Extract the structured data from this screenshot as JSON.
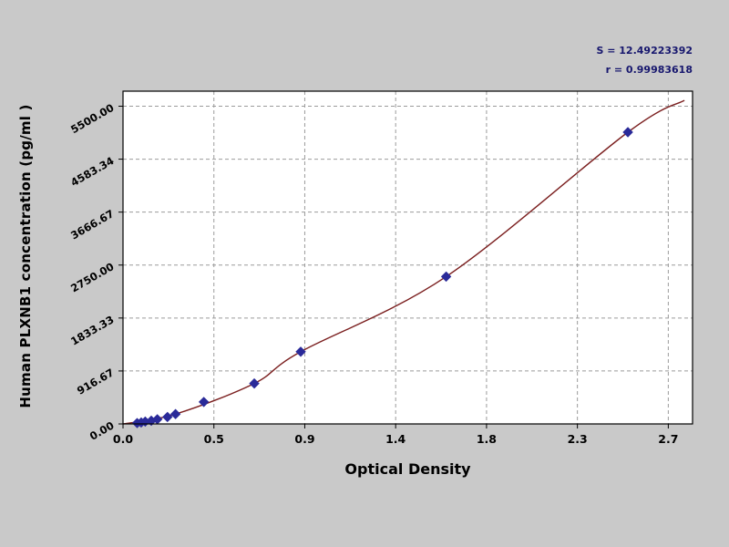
{
  "window": {
    "background": "#c9c9c9"
  },
  "annotations": {
    "s_line": "S = 12.49223392",
    "r_line": "r = 0.99983618"
  },
  "axes": {
    "y_label": "Human PLXNB1 concentration (pg/ml )",
    "x_label": "Optical Density"
  },
  "chart_data": {
    "type": "scatter",
    "title": "",
    "xlabel": "Optical Density",
    "ylabel": "Human PLXNB1 concentration (pg/ml )",
    "xlim": [
      0,
      2.7
    ],
    "ylim": [
      0,
      5500
    ],
    "x_tick_values": [
      0,
      0.45,
      0.9,
      1.35,
      1.8,
      2.25,
      2.7
    ],
    "x_tick_labels": [
      "0.0",
      "0.5",
      "0.9",
      "1.4",
      "1.8",
      "2.3",
      "2.7"
    ],
    "y_tick_values": [
      0,
      916.67,
      1833.33,
      2750,
      3666.67,
      4583.34,
      5500
    ],
    "y_tick_labels": [
      "0.00",
      "916.67",
      "1833.33",
      "2750.00",
      "3666.67",
      "4583.34",
      "5500.00"
    ],
    "grid": "dashed",
    "legend": "none",
    "fit_annotation": {
      "s": "12.49223392",
      "r": "0.99983618"
    },
    "series": [
      {
        "name": "standard-points",
        "type": "scatter",
        "marker": "diamond",
        "color": "#2a2a99",
        "points": [
          [
            0.07,
            15
          ],
          [
            0.09,
            25
          ],
          [
            0.11,
            40
          ],
          [
            0.14,
            55
          ],
          [
            0.17,
            80
          ],
          [
            0.22,
            120
          ],
          [
            0.26,
            170
          ],
          [
            0.4,
            380
          ],
          [
            0.65,
            700
          ],
          [
            0.88,
            1250
          ],
          [
            1.6,
            2550
          ],
          [
            2.5,
            5050
          ]
        ]
      },
      {
        "name": "fit-curve",
        "type": "line",
        "color": "#7b1f1f",
        "points": [
          [
            0,
            0
          ],
          [
            0.26,
            170
          ],
          [
            0.65,
            700
          ],
          [
            0.88,
            1250
          ],
          [
            1.6,
            2550
          ],
          [
            2.5,
            5050
          ],
          [
            2.78,
            5600
          ]
        ]
      }
    ],
    "colors": {
      "plot_bg": "#ffffff",
      "grid": "#9b9b9b",
      "frame": "#000000",
      "tick_text": "#000000"
    }
  }
}
